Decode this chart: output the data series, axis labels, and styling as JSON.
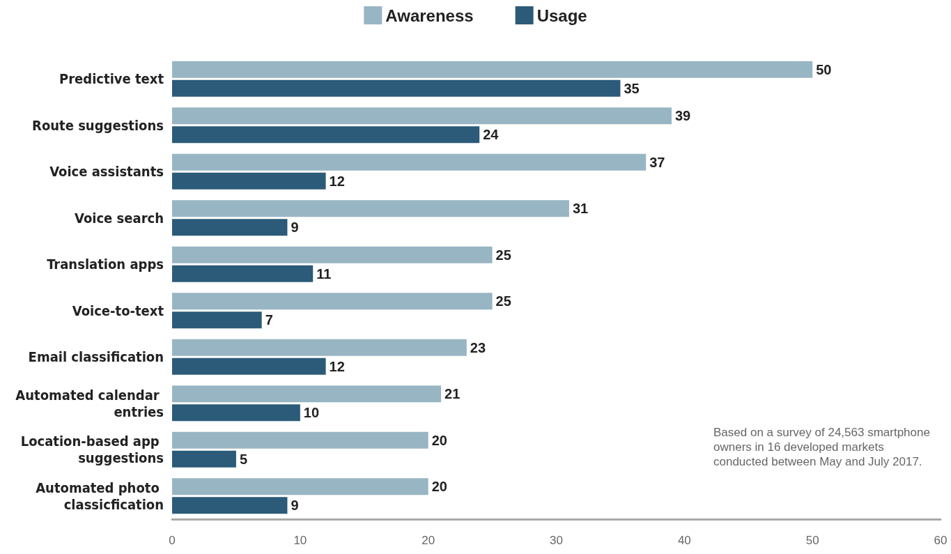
{
  "chart_data": {
    "type": "bar",
    "orientation": "horizontal",
    "categories": [
      "Predictive text",
      "Route suggestions",
      "Voice assistants",
      "Voice search",
      "Translation apps",
      "Voice-to-text",
      "Email classification",
      "Automated calendar entries",
      "Location-based app suggestions",
      "Automated photo classicfication"
    ],
    "series": [
      {
        "name": "Awareness",
        "color": "#98b5c3",
        "values": [
          50,
          39,
          37,
          31,
          25,
          25,
          23,
          21,
          20,
          20
        ]
      },
      {
        "name": "Usage",
        "color": "#2b5b78",
        "values": [
          35,
          24,
          12,
          9,
          11,
          7,
          12,
          10,
          5,
          9
        ]
      }
    ],
    "xlim": [
      0,
      60
    ],
    "xticks": [
      0,
      10,
      20,
      30,
      40,
      50,
      60
    ],
    "grid": false,
    "legend": "top",
    "data_labels": true,
    "annotations": [
      "Based on a survey of 24,563 smartphone owners in 16 developed markets conducted between May and July 2017."
    ]
  }
}
